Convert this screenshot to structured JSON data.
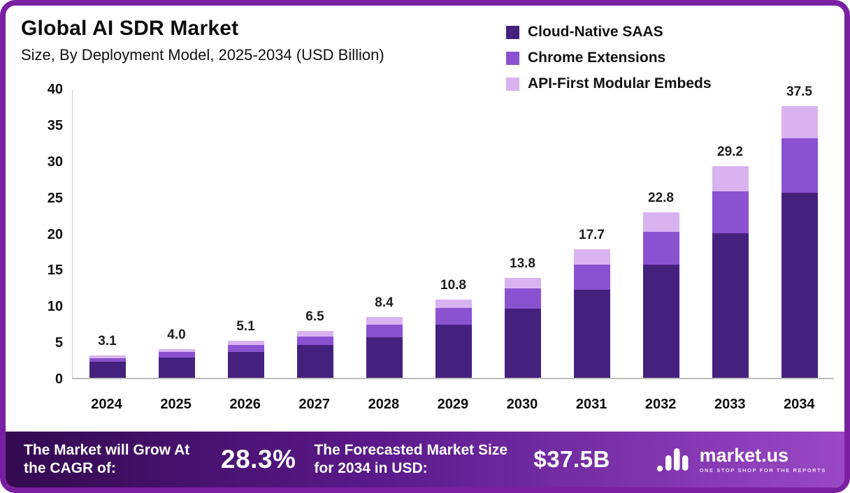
{
  "frame": {
    "border_color": "#7b1fa2"
  },
  "header": {
    "title": "Global AI SDR Market",
    "subtitle": "Size, By Deployment Model, 2025-2034 (USD Billion)"
  },
  "chart_data": {
    "type": "bar",
    "stacked": true,
    "title": "Global AI SDR Market Size, By Deployment Model, 2025-2034 (USD Billion)",
    "categories": [
      "2024",
      "2025",
      "2026",
      "2027",
      "2028",
      "2029",
      "2030",
      "2031",
      "2032",
      "2033",
      "2034"
    ],
    "series": [
      {
        "name": "Cloud-Native SAAS",
        "color": "#45217e",
        "values": [
          2.2,
          2.8,
          3.6,
          4.5,
          5.6,
          7.3,
          9.5,
          12.1,
          15.6,
          20.0,
          25.5
        ]
      },
      {
        "name": "Chrome Extensions",
        "color": "#8a52d1",
        "values": [
          0.5,
          0.8,
          0.9,
          1.2,
          1.7,
          2.3,
          2.8,
          3.5,
          4.5,
          5.7,
          7.6
        ]
      },
      {
        "name": "API-First Modular Embeds",
        "color": "#d9b3f0",
        "values": [
          0.4,
          0.4,
          0.6,
          0.8,
          1.1,
          1.2,
          1.5,
          2.1,
          2.7,
          3.5,
          4.4
        ]
      }
    ],
    "totals": [
      "3.1",
      "4.0",
      "5.1",
      "6.5",
      "8.4",
      "10.8",
      "13.8",
      "17.7",
      "22.8",
      "29.2",
      "37.5"
    ],
    "ylim": [
      0,
      40
    ],
    "yticks": [
      0,
      5,
      10,
      15,
      20,
      25,
      30,
      35,
      40
    ],
    "xlabel": "",
    "ylabel": "",
    "grid": false,
    "legend_position": "top-right"
  },
  "footer": {
    "cagr_label": "The Market will Grow At the CAGR of:",
    "cagr_value": "28.3%",
    "forecast_label": "The Forecasted Market Size for 2034 in USD:",
    "forecast_value": "$37.5B",
    "brand": "market.us",
    "brand_tagline": "ONE STOP SHOP FOR THE REPORTS"
  }
}
